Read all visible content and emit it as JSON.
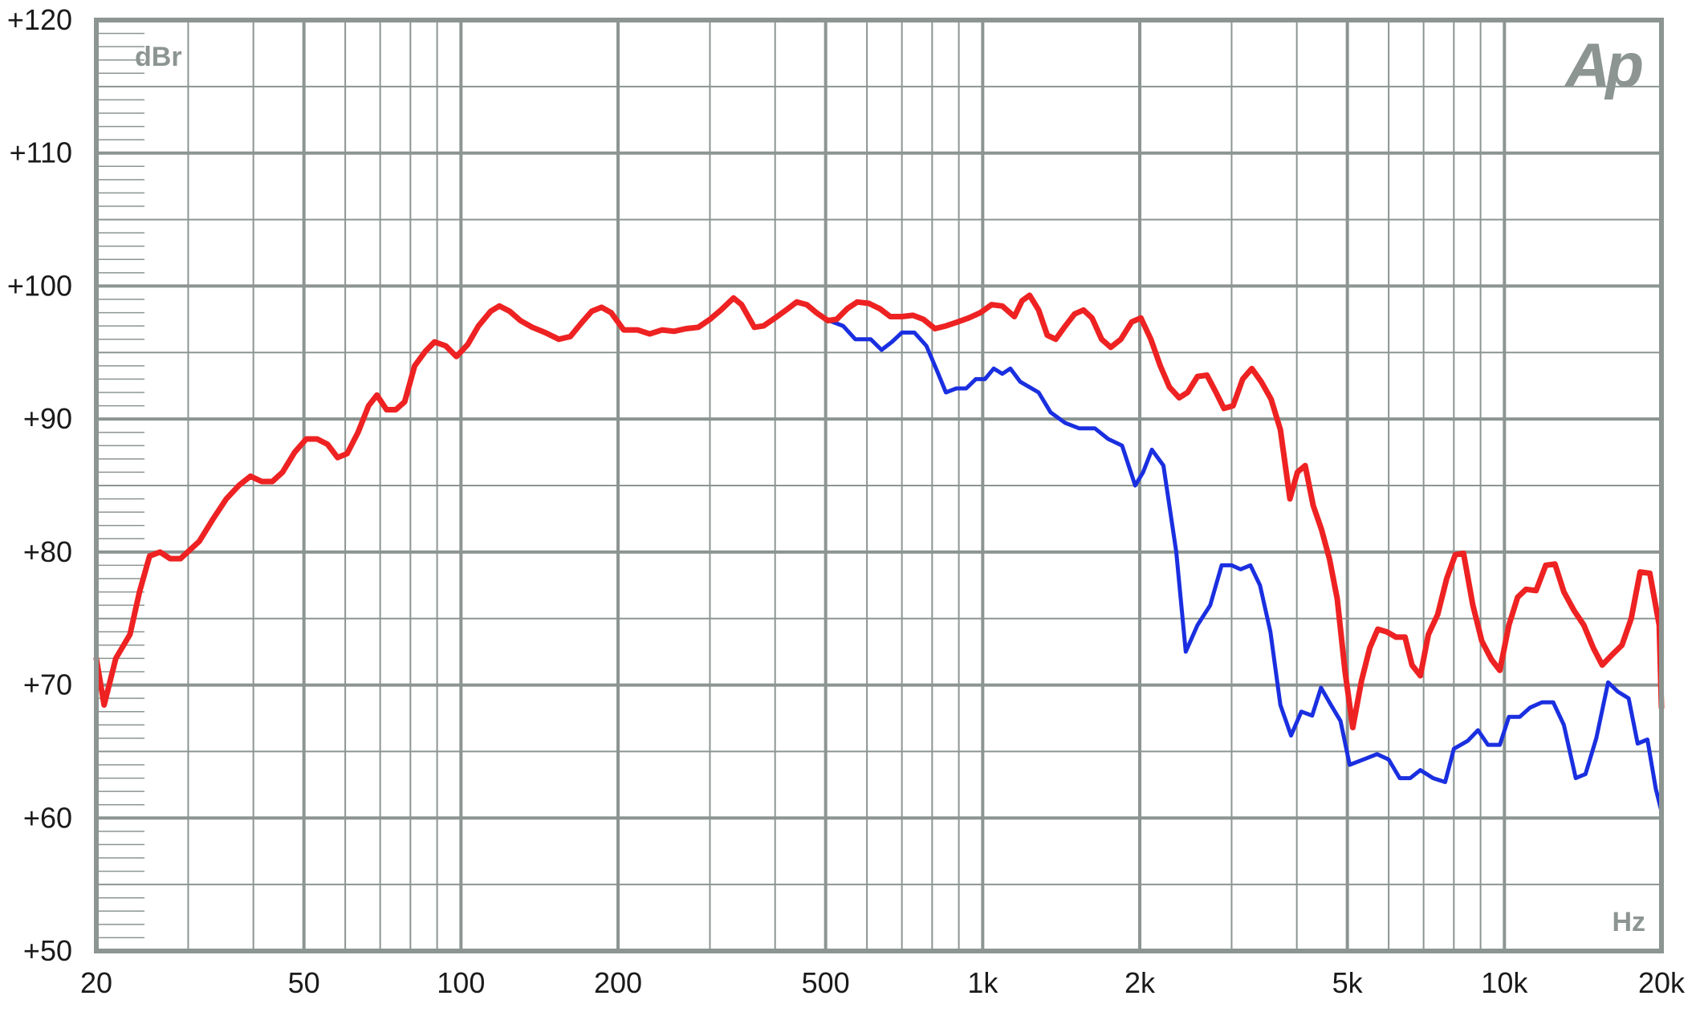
{
  "chart_data": {
    "type": "line",
    "title": "",
    "xlabel": "Hz",
    "ylabel": "dBr",
    "xscale": "log",
    "xlim": [
      20,
      20000
    ],
    "ylim": [
      50,
      120
    ],
    "x_ticks": [
      {
        "value": 20,
        "label": "20"
      },
      {
        "value": 50,
        "label": "50"
      },
      {
        "value": 100,
        "label": "100"
      },
      {
        "value": 200,
        "label": "200"
      },
      {
        "value": 500,
        "label": "500"
      },
      {
        "value": 1000,
        "label": "1k"
      },
      {
        "value": 2000,
        "label": "2k"
      },
      {
        "value": 5000,
        "label": "5k"
      },
      {
        "value": 10000,
        "label": "10k"
      },
      {
        "value": 20000,
        "label": "20k"
      }
    ],
    "y_ticks": [
      {
        "value": 120,
        "label": "+120"
      },
      {
        "value": 110,
        "label": "+110"
      },
      {
        "value": 100,
        "label": "+100"
      },
      {
        "value": 90,
        "label": "+90"
      },
      {
        "value": 80,
        "label": "+80"
      },
      {
        "value": 70,
        "label": "+70"
      },
      {
        "value": 60,
        "label": "+60"
      },
      {
        "value": 50,
        "label": "+50"
      }
    ],
    "grid": true,
    "logo": "Ap",
    "colors": {
      "grid": "#8c9591",
      "frame": "#8c9591",
      "red": "#ee2222",
      "blue": "#1a2fe0"
    },
    "series": [
      {
        "color": "#1a2fe0",
        "points": [
          [
            500,
            97.5
          ],
          [
            540,
            97.0
          ],
          [
            570,
            96.0
          ],
          [
            610,
            96.0
          ],
          [
            640,
            95.2
          ],
          [
            670,
            95.8
          ],
          [
            700,
            96.5
          ],
          [
            740,
            96.5
          ],
          [
            780,
            95.5
          ],
          [
            820,
            93.5
          ],
          [
            850,
            92.0
          ],
          [
            890,
            92.3
          ],
          [
            930,
            92.3
          ],
          [
            970,
            93.0
          ],
          [
            1010,
            93.0
          ],
          [
            1050,
            93.8
          ],
          [
            1090,
            93.4
          ],
          [
            1130,
            93.8
          ],
          [
            1180,
            92.8
          ],
          [
            1280,
            92.0
          ],
          [
            1350,
            90.5
          ],
          [
            1440,
            89.7
          ],
          [
            1530,
            89.3
          ],
          [
            1640,
            89.3
          ],
          [
            1740,
            88.5
          ],
          [
            1850,
            88.0
          ],
          [
            1960,
            85.0
          ],
          [
            2030,
            86.0
          ],
          [
            2110,
            87.7
          ],
          [
            2220,
            86.5
          ],
          [
            2350,
            80.0
          ],
          [
            2450,
            72.5
          ],
          [
            2580,
            74.5
          ],
          [
            2730,
            76.0
          ],
          [
            2870,
            79.0
          ],
          [
            3000,
            79.0
          ],
          [
            3120,
            78.7
          ],
          [
            3260,
            79.0
          ],
          [
            3400,
            77.5
          ],
          [
            3560,
            74.0
          ],
          [
            3720,
            68.5
          ],
          [
            3900,
            66.2
          ],
          [
            4080,
            68.0
          ],
          [
            4280,
            67.7
          ],
          [
            4450,
            69.8
          ],
          [
            4650,
            68.5
          ],
          [
            4850,
            67.3
          ],
          [
            5050,
            64.0
          ],
          [
            5450,
            64.5
          ],
          [
            5700,
            64.8
          ],
          [
            6000,
            64.4
          ],
          [
            6300,
            63.0
          ],
          [
            6600,
            63.0
          ],
          [
            6900,
            63.6
          ],
          [
            7300,
            63.0
          ],
          [
            7700,
            62.7
          ],
          [
            8000,
            65.2
          ],
          [
            8500,
            65.8
          ],
          [
            8900,
            66.6
          ],
          [
            9300,
            65.5
          ],
          [
            9800,
            65.5
          ],
          [
            10200,
            67.6
          ],
          [
            10700,
            67.6
          ],
          [
            11200,
            68.3
          ],
          [
            11800,
            68.7
          ],
          [
            12400,
            68.7
          ],
          [
            13000,
            67.0
          ],
          [
            13700,
            63.0
          ],
          [
            14300,
            63.3
          ],
          [
            15000,
            66.0
          ],
          [
            15800,
            70.2
          ],
          [
            16500,
            69.5
          ],
          [
            17300,
            69.0
          ],
          [
            18000,
            65.6
          ],
          [
            18800,
            65.9
          ],
          [
            19500,
            62.2
          ],
          [
            20000,
            60.5
          ]
        ]
      },
      {
        "color": "#ee2222",
        "points": [
          [
            20,
            72.0
          ],
          [
            20.7,
            68.5
          ],
          [
            21.8,
            72.0
          ],
          [
            23.2,
            73.8
          ],
          [
            24.2,
            77.0
          ],
          [
            25.3,
            79.7
          ],
          [
            26.5,
            80.0
          ],
          [
            27.7,
            79.5
          ],
          [
            29.0,
            79.5
          ],
          [
            31.5,
            80.8
          ],
          [
            33.5,
            82.5
          ],
          [
            35.5,
            84.0
          ],
          [
            37.5,
            85.0
          ],
          [
            39.5,
            85.7
          ],
          [
            41.5,
            85.3
          ],
          [
            43.5,
            85.3
          ],
          [
            45.5,
            86.0
          ],
          [
            48,
            87.5
          ],
          [
            50.5,
            88.5
          ],
          [
            53,
            88.5
          ],
          [
            55.5,
            88.1
          ],
          [
            58,
            87.1
          ],
          [
            60.5,
            87.4
          ],
          [
            63.5,
            89.0
          ],
          [
            66.5,
            91.0
          ],
          [
            69,
            91.8
          ],
          [
            72,
            90.7
          ],
          [
            75,
            90.7
          ],
          [
            78,
            91.3
          ],
          [
            81.5,
            94.0
          ],
          [
            85.5,
            95.1
          ],
          [
            89,
            95.8
          ],
          [
            93.5,
            95.5
          ],
          [
            98,
            94.7
          ],
          [
            103,
            95.6
          ],
          [
            108,
            97.0
          ],
          [
            114,
            98.1
          ],
          [
            118.5,
            98.5
          ],
          [
            124,
            98.1
          ],
          [
            130,
            97.4
          ],
          [
            137,
            96.9
          ],
          [
            145,
            96.5
          ],
          [
            154,
            96.0
          ],
          [
            162,
            96.2
          ],
          [
            170,
            97.2
          ],
          [
            178,
            98.1
          ],
          [
            186,
            98.4
          ],
          [
            194,
            98.0
          ],
          [
            205,
            96.7
          ],
          [
            218,
            96.7
          ],
          [
            230,
            96.4
          ],
          [
            243,
            96.7
          ],
          [
            256,
            96.6
          ],
          [
            270,
            96.8
          ],
          [
            285,
            96.9
          ],
          [
            300,
            97.5
          ],
          [
            315,
            98.2
          ],
          [
            333,
            99.1
          ],
          [
            345,
            98.6
          ],
          [
            365,
            96.9
          ],
          [
            380,
            97.0
          ],
          [
            400,
            97.6
          ],
          [
            420,
            98.2
          ],
          [
            440,
            98.8
          ],
          [
            460,
            98.6
          ],
          [
            480,
            98.0
          ],
          [
            505,
            97.4
          ],
          [
            525,
            97.5
          ],
          [
            550,
            98.3
          ],
          [
            575,
            98.8
          ],
          [
            605,
            98.7
          ],
          [
            635,
            98.3
          ],
          [
            665,
            97.7
          ],
          [
            700,
            97.7
          ],
          [
            735,
            97.8
          ],
          [
            770,
            97.5
          ],
          [
            810,
            96.8
          ],
          [
            850,
            97.0
          ],
          [
            895,
            97.3
          ],
          [
            940,
            97.6
          ],
          [
            990,
            98.0
          ],
          [
            1040,
            98.6
          ],
          [
            1090,
            98.5
          ],
          [
            1150,
            97.7
          ],
          [
            1190,
            98.9
          ],
          [
            1230,
            99.3
          ],
          [
            1280,
            98.2
          ],
          [
            1330,
            96.3
          ],
          [
            1380,
            96.0
          ],
          [
            1440,
            97.0
          ],
          [
            1500,
            97.9
          ],
          [
            1560,
            98.2
          ],
          [
            1620,
            97.6
          ],
          [
            1690,
            96.0
          ],
          [
            1760,
            95.4
          ],
          [
            1840,
            96.0
          ],
          [
            1930,
            97.3
          ],
          [
            2010,
            97.6
          ],
          [
            2100,
            96.0
          ],
          [
            2190,
            94.0
          ],
          [
            2280,
            92.4
          ],
          [
            2380,
            91.6
          ],
          [
            2470,
            92.0
          ],
          [
            2580,
            93.2
          ],
          [
            2690,
            93.3
          ],
          [
            2800,
            92.0
          ],
          [
            2900,
            90.8
          ],
          [
            3020,
            91.0
          ],
          [
            3150,
            93.0
          ],
          [
            3280,
            93.8
          ],
          [
            3420,
            92.8
          ],
          [
            3570,
            91.5
          ],
          [
            3720,
            89.2
          ],
          [
            3880,
            84.0
          ],
          [
            4010,
            86.0
          ],
          [
            4150,
            86.5
          ],
          [
            4300,
            83.5
          ],
          [
            4460,
            81.7
          ],
          [
            4620,
            79.5
          ],
          [
            4780,
            76.5
          ],
          [
            4950,
            71.0
          ],
          [
            5120,
            66.8
          ],
          [
            5320,
            70.3
          ],
          [
            5520,
            72.8
          ],
          [
            5720,
            74.2
          ],
          [
            5950,
            74.0
          ],
          [
            6200,
            73.6
          ],
          [
            6450,
            73.6
          ],
          [
            6650,
            71.5
          ],
          [
            6900,
            70.7
          ],
          [
            7150,
            73.8
          ],
          [
            7450,
            75.3
          ],
          [
            7750,
            78.0
          ],
          [
            8050,
            79.8
          ],
          [
            8350,
            79.9
          ],
          [
            8700,
            76.0
          ],
          [
            9050,
            73.3
          ],
          [
            9450,
            71.9
          ],
          [
            9800,
            71.1
          ],
          [
            10200,
            74.5
          ],
          [
            10600,
            76.6
          ],
          [
            11000,
            77.2
          ],
          [
            11500,
            77.1
          ],
          [
            12000,
            79.0
          ],
          [
            12500,
            79.1
          ],
          [
            13000,
            77.0
          ],
          [
            13600,
            75.6
          ],
          [
            14200,
            74.5
          ],
          [
            14800,
            72.8
          ],
          [
            15400,
            71.5
          ],
          [
            16100,
            72.3
          ],
          [
            16800,
            73.0
          ],
          [
            17500,
            75.0
          ],
          [
            18200,
            78.5
          ],
          [
            19000,
            78.4
          ],
          [
            19800,
            74.5
          ],
          [
            20000,
            68.3
          ]
        ]
      }
    ]
  }
}
